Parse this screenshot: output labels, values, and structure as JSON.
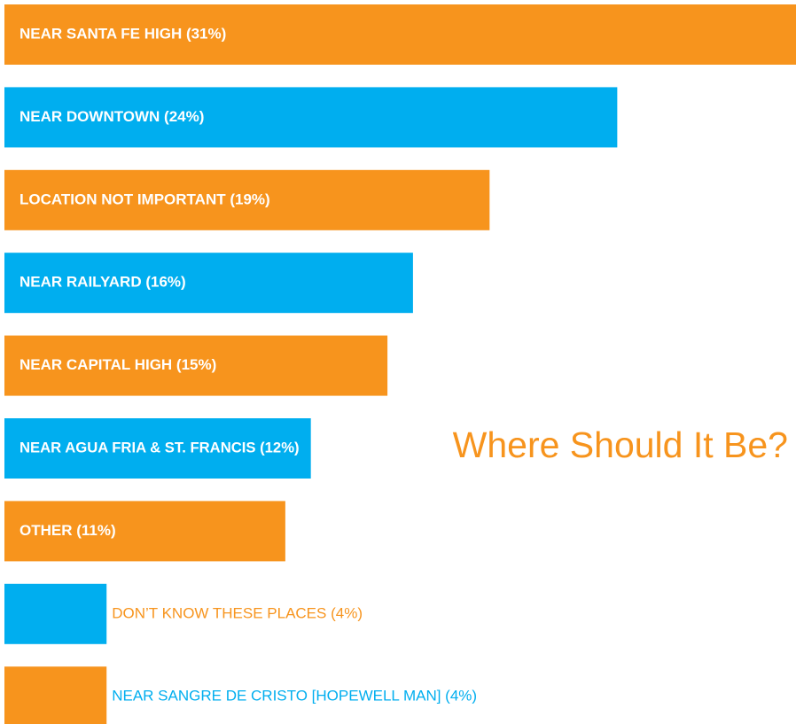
{
  "chart_data": {
    "type": "hbar",
    "title": "Where Should It Be?",
    "categories": [
      "NEAR SANTA FE HIGH (31%)",
      "NEAR DOWNTOWN (24%)",
      "LOCATION NOT IMPORTANT (19%)",
      "NEAR RAILYARD (16%)",
      "NEAR CAPITAL HIGH (15%)",
      "NEAR AGUA FRIA & ST. FRANCIS (12%)",
      "OTHER (11%)",
      "DON’T KNOW THESE PLACES (4%)",
      "NEAR SANGRE DE CRISTO [HOPEWELL MAN] (4%)"
    ],
    "values": [
      31,
      24,
      19,
      16,
      15,
      12,
      11,
      4,
      4
    ],
    "colors": [
      "#f7941d",
      "#00aeef",
      "#f7941d",
      "#00aeef",
      "#f7941d",
      "#00aeef",
      "#f7941d",
      "#00aeef",
      "#f7941d"
    ]
  }
}
